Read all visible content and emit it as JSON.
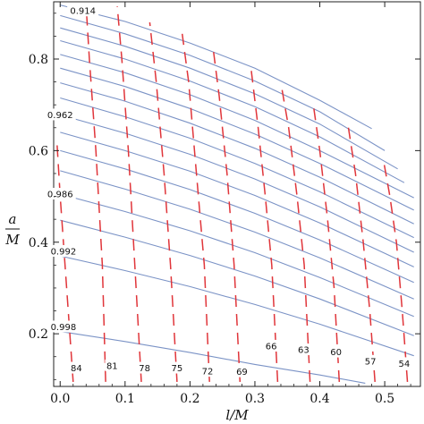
{
  "chart_data": {
    "type": "contour",
    "xlabel": "l/M",
    "ylabel_top": "a",
    "ylabel_bottom": "M",
    "xlim": [
      -0.01,
      0.555
    ],
    "ylim": [
      0.085,
      0.925
    ],
    "x_ticks": [
      "0.0",
      "0.1",
      "0.2",
      "0.3",
      "0.4",
      "0.5"
    ],
    "y_ticks": [
      "0.2",
      "0.4",
      "0.6",
      "0.8"
    ],
    "colors": {
      "solid": "#7b93c6",
      "dashed": "#e0353a",
      "frame": "#222222"
    },
    "solid_contours": [
      {
        "label": "0.914",
        "label_at": [
          0.035,
          0.905
        ],
        "points": [
          [
            0.0,
            0.918
          ],
          [
            0.1,
            0.882
          ],
          [
            0.2,
            0.835
          ],
          [
            0.3,
            0.78
          ],
          [
            0.4,
            0.71
          ],
          [
            0.48,
            0.648
          ]
        ]
      },
      {
        "points": [
          [
            0.0,
            0.895
          ],
          [
            0.1,
            0.855
          ],
          [
            0.2,
            0.808
          ],
          [
            0.3,
            0.752
          ],
          [
            0.4,
            0.685
          ],
          [
            0.5,
            0.6
          ]
        ]
      },
      {
        "points": [
          [
            0.0,
            0.868
          ],
          [
            0.1,
            0.828
          ],
          [
            0.2,
            0.78
          ],
          [
            0.3,
            0.724
          ],
          [
            0.4,
            0.658
          ],
          [
            0.52,
            0.56
          ]
        ]
      },
      {
        "points": [
          [
            0.0,
            0.84
          ],
          [
            0.1,
            0.8
          ],
          [
            0.2,
            0.752
          ],
          [
            0.3,
            0.696
          ],
          [
            0.4,
            0.63
          ],
          [
            0.53,
            0.53
          ]
        ]
      },
      {
        "points": [
          [
            0.0,
            0.81
          ],
          [
            0.1,
            0.77
          ],
          [
            0.2,
            0.722
          ],
          [
            0.3,
            0.666
          ],
          [
            0.4,
            0.6
          ],
          [
            0.545,
            0.497
          ]
        ]
      },
      {
        "points": [
          [
            0.0,
            0.78
          ],
          [
            0.1,
            0.74
          ],
          [
            0.2,
            0.692
          ],
          [
            0.3,
            0.636
          ],
          [
            0.4,
            0.572
          ],
          [
            0.545,
            0.47
          ]
        ]
      },
      {
        "points": [
          [
            0.0,
            0.748
          ],
          [
            0.1,
            0.708
          ],
          [
            0.2,
            0.66
          ],
          [
            0.3,
            0.605
          ],
          [
            0.4,
            0.542
          ],
          [
            0.545,
            0.44
          ]
        ]
      },
      {
        "points": [
          [
            0.0,
            0.715
          ],
          [
            0.1,
            0.674
          ],
          [
            0.2,
            0.627
          ],
          [
            0.3,
            0.572
          ],
          [
            0.4,
            0.51
          ],
          [
            0.545,
            0.41
          ]
        ]
      },
      {
        "label": "0.962",
        "label_at": [
          0.0,
          0.678
        ],
        "points": [
          [
            0.0,
            0.678
          ],
          [
            0.1,
            0.638
          ],
          [
            0.2,
            0.592
          ],
          [
            0.3,
            0.538
          ],
          [
            0.4,
            0.477
          ],
          [
            0.545,
            0.378
          ]
        ]
      },
      {
        "points": [
          [
            0.0,
            0.64
          ],
          [
            0.1,
            0.6
          ],
          [
            0.2,
            0.555
          ],
          [
            0.3,
            0.502
          ],
          [
            0.4,
            0.442
          ],
          [
            0.545,
            0.346
          ]
        ]
      },
      {
        "points": [
          [
            0.0,
            0.6
          ],
          [
            0.1,
            0.56
          ],
          [
            0.2,
            0.515
          ],
          [
            0.3,
            0.463
          ],
          [
            0.4,
            0.405
          ],
          [
            0.545,
            0.312
          ]
        ]
      },
      {
        "points": [
          [
            0.0,
            0.556
          ],
          [
            0.1,
            0.516
          ],
          [
            0.2,
            0.472
          ],
          [
            0.3,
            0.422
          ],
          [
            0.4,
            0.366
          ],
          [
            0.545,
            0.276
          ]
        ]
      },
      {
        "label": "0.986",
        "label_at": [
          0.0,
          0.505
        ],
        "points": [
          [
            0.0,
            0.505
          ],
          [
            0.1,
            0.467
          ],
          [
            0.2,
            0.425
          ],
          [
            0.3,
            0.377
          ],
          [
            0.4,
            0.323
          ],
          [
            0.545,
            0.238
          ]
        ]
      },
      {
        "points": [
          [
            0.0,
            0.448
          ],
          [
            0.1,
            0.411
          ],
          [
            0.2,
            0.371
          ],
          [
            0.3,
            0.326
          ],
          [
            0.4,
            0.276
          ],
          [
            0.545,
            0.196
          ]
        ]
      },
      {
        "label": "0.992",
        "label_at": [
          0.005,
          0.38
        ],
        "points": [
          [
            0.0,
            0.37
          ],
          [
            0.1,
            0.338
          ],
          [
            0.2,
            0.303
          ],
          [
            0.3,
            0.264
          ],
          [
            0.4,
            0.221
          ],
          [
            0.545,
            0.152
          ]
        ]
      },
      {
        "label": "0.998",
        "label_at": [
          0.005,
          0.215
        ],
        "points": [
          [
            0.0,
            0.205
          ],
          [
            0.1,
            0.183
          ],
          [
            0.2,
            0.159
          ],
          [
            0.3,
            0.133
          ],
          [
            0.4,
            0.11
          ],
          [
            0.47,
            0.092
          ]
        ]
      }
    ],
    "dashed_contours": [
      {
        "label": "84",
        "label_at": [
          0.025,
          0.125
        ],
        "points": [
          [
            0.02,
            0.095
          ],
          [
            0.01,
            0.3
          ],
          [
            0.0,
            0.5
          ],
          [
            -0.005,
            0.62
          ]
        ]
      },
      {
        "label": "81",
        "label_at": [
          0.08,
          0.13
        ],
        "points": [
          [
            0.07,
            0.095
          ],
          [
            0.065,
            0.35
          ],
          [
            0.055,
            0.6
          ],
          [
            0.045,
            0.8
          ],
          [
            0.04,
            0.915
          ]
        ]
      },
      {
        "label": "78",
        "label_at": [
          0.13,
          0.125
        ],
        "points": [
          [
            0.125,
            0.095
          ],
          [
            0.115,
            0.35
          ],
          [
            0.105,
            0.6
          ],
          [
            0.095,
            0.8
          ],
          [
            0.088,
            0.915
          ]
        ]
      },
      {
        "label": "75",
        "label_at": [
          0.18,
          0.125
        ],
        "points": [
          [
            0.18,
            0.095
          ],
          [
            0.17,
            0.35
          ],
          [
            0.16,
            0.55
          ],
          [
            0.148,
            0.75
          ],
          [
            0.138,
            0.88
          ]
        ]
      },
      {
        "label": "72",
        "label_at": [
          0.227,
          0.118
        ],
        "points": [
          [
            0.23,
            0.095
          ],
          [
            0.222,
            0.35
          ],
          [
            0.21,
            0.55
          ],
          [
            0.198,
            0.75
          ],
          [
            0.188,
            0.855
          ]
        ]
      },
      {
        "label": "69",
        "label_at": [
          0.28,
          0.117
        ],
        "points": [
          [
            0.277,
            0.095
          ],
          [
            0.268,
            0.35
          ],
          [
            0.257,
            0.55
          ],
          [
            0.245,
            0.72
          ],
          [
            0.235,
            0.83
          ]
        ]
      },
      {
        "label": "66",
        "label_at": [
          0.325,
          0.173
        ],
        "points": [
          [
            0.335,
            0.095
          ],
          [
            0.326,
            0.35
          ],
          [
            0.316,
            0.5
          ],
          [
            0.305,
            0.65
          ],
          [
            0.294,
            0.78
          ]
        ]
      },
      {
        "label": "63",
        "label_at": [
          0.375,
          0.165
        ],
        "points": [
          [
            0.385,
            0.095
          ],
          [
            0.376,
            0.35
          ],
          [
            0.365,
            0.5
          ],
          [
            0.352,
            0.65
          ],
          [
            0.341,
            0.74
          ]
        ]
      },
      {
        "label": "60",
        "label_at": [
          0.425,
          0.16
        ],
        "points": [
          [
            0.43,
            0.095
          ],
          [
            0.422,
            0.3
          ],
          [
            0.412,
            0.45
          ],
          [
            0.4,
            0.6
          ],
          [
            0.39,
            0.7
          ]
        ]
      },
      {
        "label": "57",
        "label_at": [
          0.478,
          0.14
        ],
        "points": [
          [
            0.485,
            0.095
          ],
          [
            0.477,
            0.25
          ],
          [
            0.467,
            0.4
          ],
          [
            0.455,
            0.55
          ],
          [
            0.444,
            0.65
          ]
        ]
      },
      {
        "label": "54",
        "label_at": [
          0.53,
          0.135
        ],
        "points": [
          [
            0.535,
            0.095
          ],
          [
            0.527,
            0.25
          ],
          [
            0.518,
            0.4
          ],
          [
            0.508,
            0.5
          ],
          [
            0.498,
            0.58
          ]
        ]
      }
    ]
  }
}
